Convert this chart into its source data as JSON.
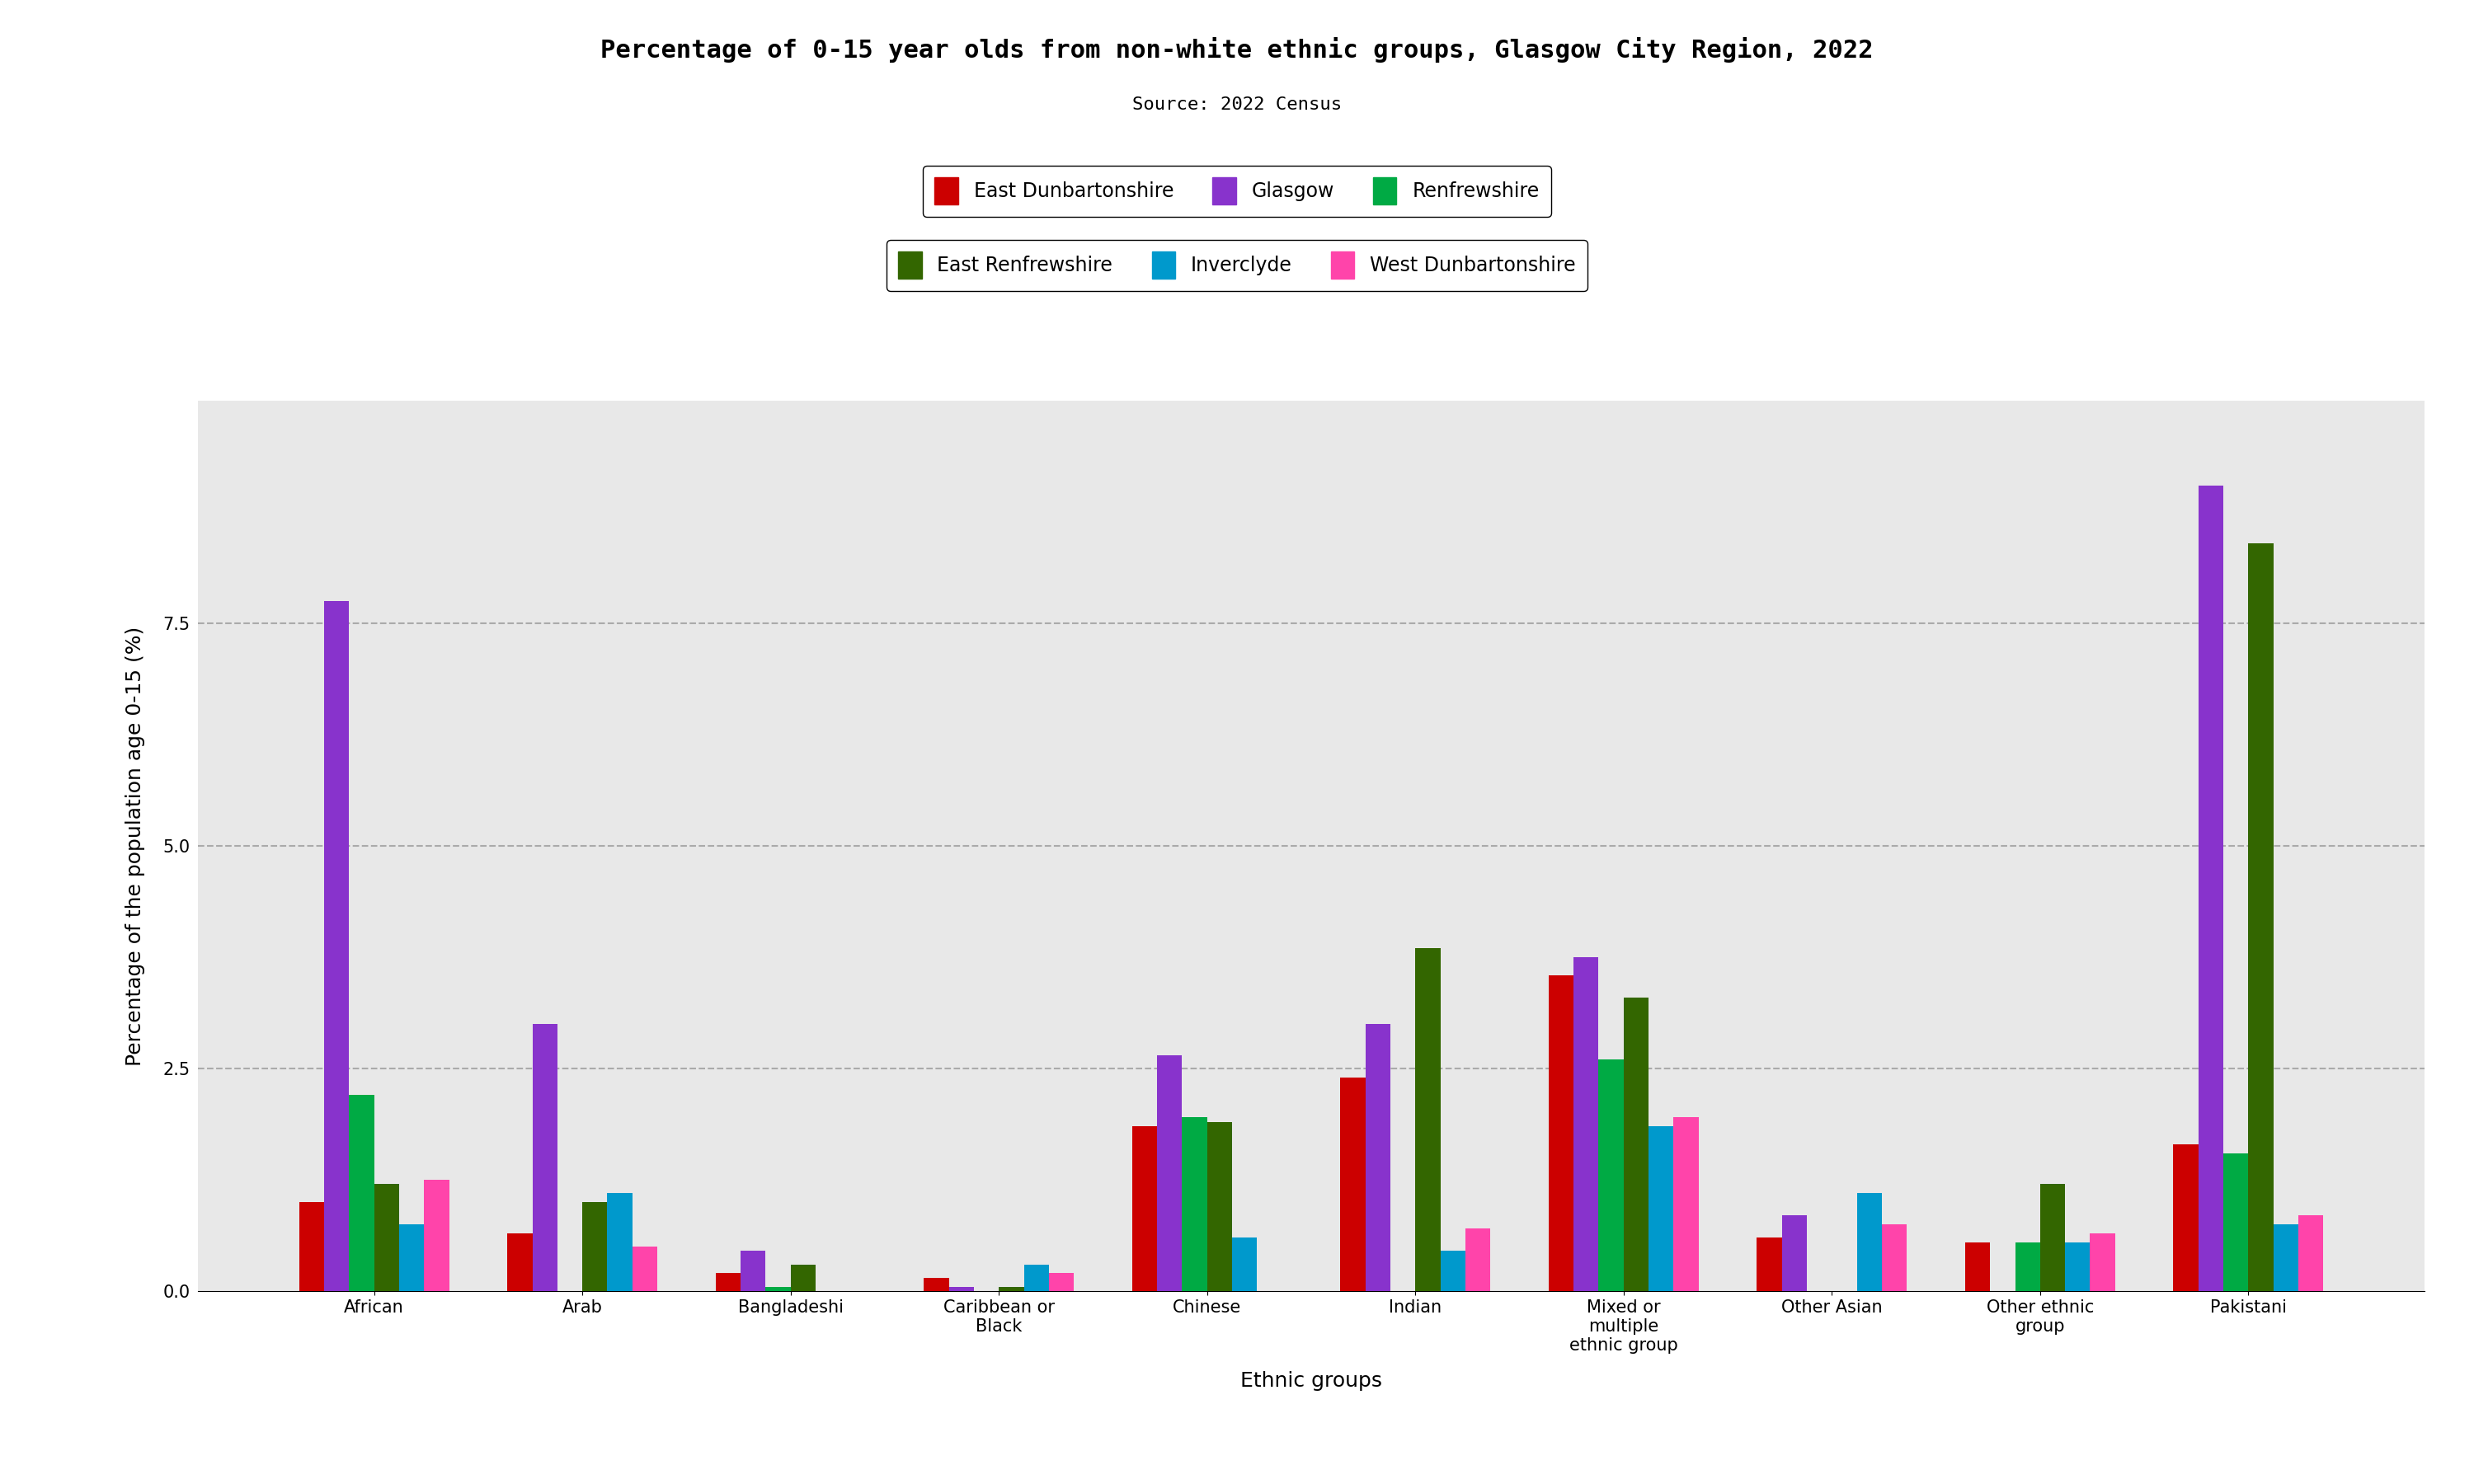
{
  "title": "Percentage of 0-15 year olds from non-white ethnic groups, Glasgow City Region, 2022",
  "source": "Source: 2022 Census",
  "xlabel": "Ethnic groups",
  "ylabel": "Percentage of the population age 0-15 (%)",
  "categories": [
    "African",
    "Arab",
    "Bangladeshi",
    "Caribbean or\nBlack",
    "Chinese",
    "Indian",
    "Mixed or\nmultiple\nethnic group",
    "Other Asian",
    "Other ethnic\ngroup",
    "Pakistani"
  ],
  "series": [
    {
      "label": "East Dunbartonshire",
      "color": "#cc0000",
      "values": [
        1.0,
        0.65,
        0.2,
        0.15,
        1.85,
        2.4,
        3.55,
        0.6,
        0.55,
        1.65
      ]
    },
    {
      "label": "Glasgow",
      "color": "#8833cc",
      "values": [
        7.75,
        3.0,
        0.45,
        0.05,
        2.65,
        3.0,
        3.75,
        0.85,
        0.0,
        9.05
      ]
    },
    {
      "label": "Renfrewshire",
      "color": "#00aa44",
      "values": [
        2.2,
        0.0,
        0.05,
        0.0,
        1.95,
        0.0,
        2.6,
        0.0,
        0.55,
        1.55
      ]
    },
    {
      "label": "East Renfrewshire",
      "color": "#336600",
      "values": [
        1.2,
        1.0,
        0.3,
        0.05,
        1.9,
        3.85,
        3.3,
        0.0,
        1.2,
        8.4
      ]
    },
    {
      "label": "Inverclyde",
      "color": "#0099cc",
      "values": [
        0.75,
        1.1,
        0.0,
        0.3,
        0.6,
        0.45,
        1.85,
        1.1,
        0.55,
        0.75
      ]
    },
    {
      "label": "West Dunbartonshire",
      "color": "#ff44aa",
      "values": [
        1.25,
        0.5,
        0.0,
        0.2,
        0.0,
        0.7,
        1.95,
        0.75,
        0.65,
        0.85
      ]
    }
  ],
  "ylim": [
    0,
    10
  ],
  "yticks": [
    0.0,
    2.5,
    5.0,
    7.5
  ],
  "grid_color": "#aaaaaa",
  "background_color": "#e8e8e8",
  "title_fontsize": 22,
  "source_fontsize": 16,
  "axis_label_fontsize": 18,
  "tick_fontsize": 15,
  "legend_fontsize": 17
}
